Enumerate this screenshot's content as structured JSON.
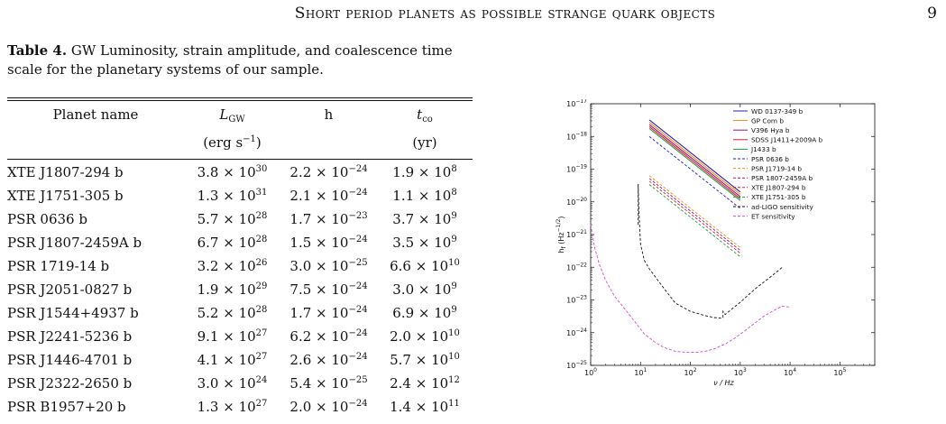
{
  "header": {
    "running_title": "Short period planets as possible strange quark objects",
    "page_number": "9"
  },
  "table": {
    "label": "Table 4.",
    "caption": "GW Luminosity, strain amplitude, and coalescence time scale for the planetary systems of our sample.",
    "columns": {
      "name": "Planet name",
      "lgw": "L",
      "lgw_sub": "GW",
      "h": "h",
      "tco": "t",
      "tco_sub": "co",
      "lgw_unit": "(erg s",
      "lgw_unit_exp": "−1",
      "lgw_unit_close": ")",
      "tco_unit": "(yr)"
    },
    "rows": [
      {
        "name": "XTE J1807-294 b",
        "L": "3.8 × 10",
        "Le": "30",
        "h": "2.2 × 10",
        "he": "−24",
        "t": "1.9 × 10",
        "te": "8"
      },
      {
        "name": "XTE J1751-305 b",
        "L": "1.3 × 10",
        "Le": "31",
        "h": "2.1 × 10",
        "he": "−24",
        "t": "1.1 × 10",
        "te": "8"
      },
      {
        "name": "PSR 0636 b",
        "L": "5.7 × 10",
        "Le": "28",
        "h": "1.7 × 10",
        "he": "−23",
        "t": "3.7 × 10",
        "te": "9"
      },
      {
        "name": "PSR J1807-2459A b",
        "L": "6.7 × 10",
        "Le": "28",
        "h": "1.5 × 10",
        "he": "−24",
        "t": "3.5 × 10",
        "te": "9"
      },
      {
        "name": "PSR 1719-14 b",
        "L": "3.2 × 10",
        "Le": "26",
        "h": "3.0 × 10",
        "he": "−25",
        "t": "6.6 × 10",
        "te": "10"
      },
      {
        "name": "PSR J2051-0827 b",
        "L": "1.9 × 10",
        "Le": "29",
        "h": "7.5 × 10",
        "he": "−24",
        "t": "3.0 × 10",
        "te": "9"
      },
      {
        "name": "PSR J1544+4937 b",
        "L": "5.2 × 10",
        "Le": "28",
        "h": "1.7 × 10",
        "he": "−24",
        "t": "6.9 × 10",
        "te": "9"
      },
      {
        "name": "PSR J2241-5236 b",
        "L": "9.1 × 10",
        "Le": "27",
        "h": "6.2 × 10",
        "he": "−24",
        "t": "2.0 × 10",
        "te": "10"
      },
      {
        "name": "PSR J1446-4701 b",
        "L": "4.1 × 10",
        "Le": "27",
        "h": "2.6 × 10",
        "he": "−24",
        "t": "5.7 × 10",
        "te": "10"
      },
      {
        "name": "PSR J2322-2650 b",
        "L": "3.0 × 10",
        "Le": "24",
        "h": "5.4 × 10",
        "he": "−25",
        "t": "2.4 × 10",
        "te": "12"
      },
      {
        "name": "PSR B1957+20 b",
        "L": "1.3 × 10",
        "Le": "27",
        "h": "2.0 × 10",
        "he": "−24",
        "t": "1.4 × 10",
        "te": "11"
      }
    ]
  },
  "chart_data": {
    "type": "line",
    "title": "",
    "xlabel": "ν / Hz",
    "ylabel": "h_f (Hz^{-1/2})",
    "xscale": "log",
    "yscale": "log",
    "xlim": [
      1,
      500000
    ],
    "ylim": [
      1e-25,
      1e-17
    ],
    "x_ticks": [
      "10^0",
      "10^1",
      "10^2",
      "10^3",
      "10^4",
      "10^5"
    ],
    "y_ticks": [
      "10^-25",
      "10^-24",
      "10^-23",
      "10^-22",
      "10^-21",
      "10^-20",
      "10^-19",
      "10^-18",
      "10^-17"
    ],
    "legend_position": "top-right",
    "grid": false,
    "series": [
      {
        "name": "WD 0137-349 b",
        "color": "#1f1fbf",
        "dash": "solid",
        "x": [
          15,
          1000
        ],
        "y": [
          3.2e-18,
          2e-20
        ]
      },
      {
        "name": "GP Com b",
        "color": "#ff8c00",
        "dash": "solid",
        "x": [
          15,
          1000
        ],
        "y": [
          2.7e-18,
          1.7e-20
        ]
      },
      {
        "name": "V396 Hya b",
        "color": "#8b1a8b",
        "dash": "solid",
        "x": [
          15,
          1000
        ],
        "y": [
          2.3e-18,
          1.45e-20
        ]
      },
      {
        "name": "SDSS J1411+2009A b",
        "color": "#d81b3c",
        "dash": "solid",
        "x": [
          15,
          1000
        ],
        "y": [
          2e-18,
          1.25e-20
        ]
      },
      {
        "name": "J1433 b",
        "color": "#1e9e3a",
        "dash": "solid",
        "x": [
          15,
          1000
        ],
        "y": [
          1.75e-18,
          1.1e-20
        ]
      },
      {
        "name": "PSR 0636 b",
        "color": "#1f1fbf",
        "dash": "dash",
        "x": [
          15,
          1000
        ],
        "y": [
          1e-18,
          6.3e-21
        ]
      },
      {
        "name": "PSR J1719-14 b",
        "color": "#ff8c00",
        "dash": "dash",
        "x": [
          15,
          1000
        ],
        "y": [
          6.3e-20,
          4e-22
        ]
      },
      {
        "name": "PSR 1807-2459A b",
        "color": "#8b1a8b",
        "dash": "dash",
        "x": [
          15,
          1000
        ],
        "y": [
          5.2e-20,
          3.3e-22
        ]
      },
      {
        "name": "XTE J1807-294 b",
        "color": "#d81b3c",
        "dash": "dash",
        "x": [
          15,
          1000
        ],
        "y": [
          4.3e-20,
          2.7e-22
        ]
      },
      {
        "name": "XTE J1751-305 b",
        "color": "#1e9e3a",
        "dash": "dash",
        "x": [
          15,
          1000
        ],
        "y": [
          3.4e-20,
          2.1e-22
        ]
      },
      {
        "name": "ad-LIGO sensitivity",
        "color": "#111111",
        "dash": "dash",
        "x": [
          9,
          9,
          9.3,
          10,
          12,
          15,
          20,
          30,
          50,
          100,
          200,
          300,
          380,
          400,
          420,
          450,
          450.5,
          500,
          700,
          1000,
          2000,
          4000,
          7000
        ],
        "y": [
          2e-21,
          3.5e-20,
          5e-21,
          5e-22,
          1.6e-22,
          9e-23,
          5e-23,
          2.2e-23,
          8e-24,
          4.5e-24,
          3.3e-24,
          2.9e-24,
          2.8e-24,
          2.75e-24,
          2.8e-24,
          2.9e-24,
          4.5e-24,
          3.6e-24,
          5.5e-24,
          8.5e-24,
          2.2e-23,
          5e-23,
          1e-22
        ]
      },
      {
        "name": "ET sensitivity",
        "color": "#e040d8",
        "dash": "dash",
        "x": [
          1,
          1.2,
          1.5,
          2,
          3,
          5,
          8,
          12,
          20,
          30,
          50,
          80,
          130,
          200,
          300,
          500,
          800,
          1200,
          2000,
          3000,
          5000,
          7000,
          10000
        ],
        "y": [
          2e-21,
          4e-22,
          1.2e-22,
          4e-23,
          1.3e-23,
          5e-24,
          2e-24,
          9e-25,
          5e-25,
          3.5e-25,
          2.7e-25,
          2.5e-25,
          2.5e-25,
          2.7e-25,
          3.2e-25,
          4.5e-25,
          7e-25,
          1.1e-24,
          2e-24,
          3.2e-24,
          5e-24,
          6.5e-24,
          6e-24
        ]
      }
    ]
  }
}
